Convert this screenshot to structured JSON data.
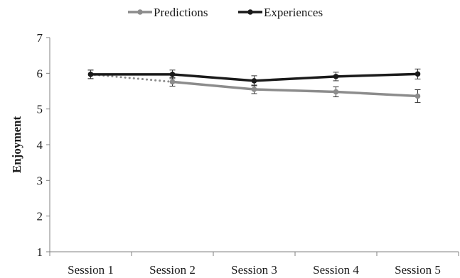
{
  "chart_data": {
    "type": "line",
    "title": "",
    "xlabel": "",
    "ylabel": "Enjoyment",
    "ylim": [
      1,
      7
    ],
    "yticks": [
      1,
      2,
      3,
      4,
      5,
      6,
      7
    ],
    "grid": false,
    "legend_position": "top-center",
    "categories": [
      "Session 1",
      "Session 2",
      "Session 3",
      "Session 4",
      "Session 5"
    ],
    "series": [
      {
        "name": "Predictions",
        "color": "#8c8c8c",
        "values": [
          5.97,
          5.76,
          5.55,
          5.48,
          5.36
        ],
        "error": [
          0.12,
          0.12,
          0.12,
          0.14,
          0.18
        ],
        "dotted_segments": [
          0
        ]
      },
      {
        "name": "Experiences",
        "color": "#1a1a1a",
        "values": [
          5.97,
          5.97,
          5.79,
          5.91,
          5.98
        ],
        "error": [
          0.12,
          0.12,
          0.14,
          0.12,
          0.14
        ],
        "dotted_segments": []
      }
    ]
  }
}
